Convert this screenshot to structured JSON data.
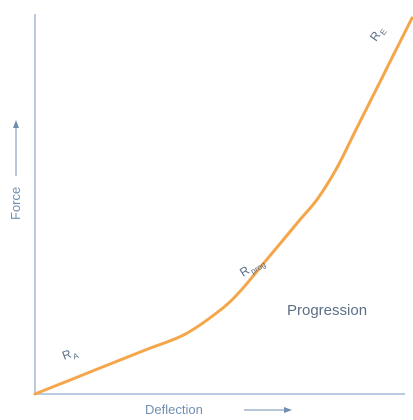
{
  "chart_data": {
    "type": "line",
    "title": "",
    "xlabel": "Deflection",
    "ylabel": "Force",
    "xlim": [
      0,
      1
    ],
    "ylim": [
      0,
      1
    ],
    "grid": false,
    "ticks": false,
    "series": [
      {
        "color": "#f5a64a",
        "x": [
          0.0,
          0.1,
          0.2,
          0.3,
          0.4,
          0.5,
          0.55,
          0.6,
          0.65,
          0.7,
          0.75,
          0.8,
          0.85,
          0.9,
          0.95,
          1.0
        ],
        "y": [
          0.0,
          0.04,
          0.08,
          0.12,
          0.16,
          0.23,
          0.28,
          0.34,
          0.4,
          0.46,
          0.52,
          0.6,
          0.7,
          0.8,
          0.9,
          1.0
        ]
      }
    ],
    "labels": {
      "ra": {
        "main": "R",
        "sub": "A"
      },
      "rprog": {
        "main": "R",
        "sub": "prog"
      },
      "re": {
        "main": "R",
        "sub": "E"
      }
    },
    "annotation": "Progression"
  },
  "colors": {
    "axis": "#b9cbe0",
    "curve": "#f5a64a",
    "text": "#6f8fb0"
  }
}
